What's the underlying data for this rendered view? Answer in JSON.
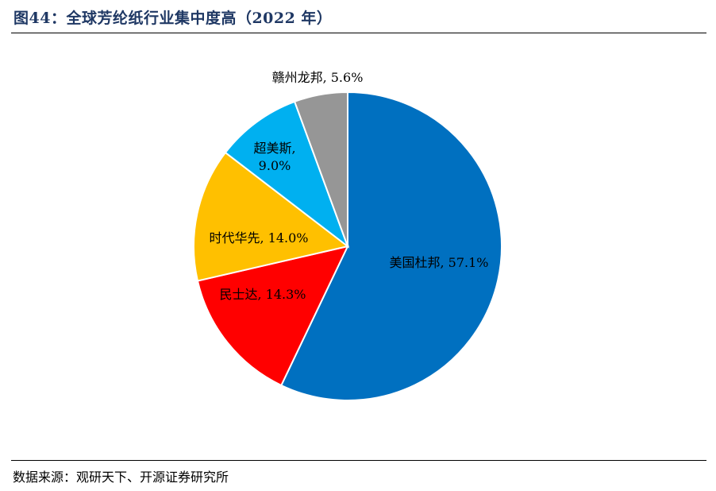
{
  "title": "图44：全球芳纶纸行业集中度高（2022 年）",
  "source": "数据来源：观研天下、开源证券研究所",
  "chart_data": {
    "type": "pie",
    "slices": [
      {
        "name": "美国杜邦",
        "value": 57.1,
        "color": "#0070c0",
        "label_lines": [
          "美国杜邦, 57.1%"
        ]
      },
      {
        "name": "民士达",
        "value": 14.3,
        "color": "#ff0000",
        "label_lines": [
          "民士达, 14.3%"
        ]
      },
      {
        "name": "时代华先",
        "value": 14.0,
        "color": "#ffc000",
        "label_lines": [
          "时代华先, 14.0%"
        ]
      },
      {
        "name": "超美斯",
        "value": 9.0,
        "color": "#00b0f0",
        "label_lines": [
          "超美斯,",
          "9.0%"
        ]
      },
      {
        "name": "赣州龙邦",
        "value": 5.6,
        "color": "#969696",
        "label_lines": [
          "赣州龙邦, 5.6%"
        ]
      }
    ],
    "start": "12 o'clock",
    "direction": "clockwise",
    "legend": "none"
  }
}
